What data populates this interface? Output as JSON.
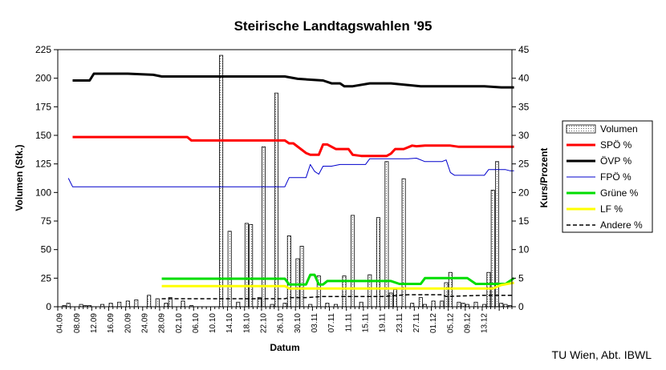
{
  "chart_data": {
    "type": "bar+line",
    "title": "Steirische Landtagswahlen '95",
    "xlabel": "Datum",
    "ylabel_left": "Volumen (Stk.)",
    "ylabel_right": "Kurs/Prozent",
    "ylim_left": [
      0,
      225
    ],
    "ylim_right": [
      0,
      45
    ],
    "yticks_left": [
      "0",
      "25",
      "50",
      "75",
      "100",
      "125",
      "150",
      "175",
      "200",
      "225"
    ],
    "yticks_right": [
      "0",
      "5",
      "10",
      "15",
      "20",
      "25",
      "30",
      "35",
      "40",
      "45"
    ],
    "x_days": 107,
    "xtick_labels": [
      "04.09",
      "08.09",
      "12.09",
      "16.09",
      "20.09",
      "24.09",
      "28.09",
      "02.10",
      "06.10",
      "10.10",
      "14.10",
      "18.10",
      "22.10",
      "26.10",
      "30.10",
      "03.11",
      "07.11",
      "11.11",
      "15.11",
      "19.11",
      "23.11",
      "27.11",
      "01.12",
      "05.12",
      "09.12",
      "13.12"
    ],
    "grid": false,
    "legend_position": "right",
    "volume": {
      "name": "Volumen",
      "day": [
        1,
        2,
        5,
        6,
        7,
        10,
        12,
        14,
        16,
        18,
        21,
        23,
        25,
        26,
        29,
        31,
        38,
        40,
        42,
        44,
        45,
        47,
        48,
        50,
        51,
        53,
        54,
        56,
        57,
        59,
        61,
        63,
        65,
        67,
        69,
        71,
        73,
        75,
        77,
        78,
        79,
        81,
        83,
        85,
        86,
        88,
        90,
        91,
        92,
        94,
        95,
        96,
        98,
        100,
        101,
        102,
        103,
        104,
        105,
        106
      ],
      "values": [
        1,
        3,
        2,
        1,
        1,
        2,
        3,
        4,
        5,
        6,
        10,
        7,
        3,
        8,
        5,
        1,
        220,
        66,
        4,
        73,
        72,
        8,
        140,
        2,
        187,
        3,
        62,
        42,
        53,
        2,
        27,
        3,
        2,
        27,
        80,
        4,
        28,
        78,
        127,
        12,
        15,
        112,
        3,
        8,
        2,
        5,
        5,
        21,
        30,
        4,
        3,
        2,
        4,
        2,
        30,
        102,
        127,
        3,
        2,
        1
      ]
    },
    "series": [
      {
        "name": "SPÖ %",
        "color": "#ff0000",
        "width": 3,
        "dash": "",
        "x": [
          3,
          30,
          31,
          53,
          54,
          55,
          58,
          59,
          61,
          62,
          63,
          65,
          68,
          69,
          71,
          72,
          75,
          77,
          78,
          79,
          81,
          83,
          84,
          86,
          89,
          91,
          92,
          94,
          97,
          100,
          107
        ],
        "y": [
          29.7,
          29.7,
          29.1,
          29.1,
          28.6,
          28.6,
          26.9,
          26.6,
          26.6,
          28.4,
          28.4,
          27.6,
          27.6,
          26.6,
          26.4,
          26.4,
          26.4,
          26.4,
          26.8,
          27.6,
          27.6,
          28.2,
          28.1,
          28.2,
          28.2,
          28.2,
          28.2,
          28.0,
          28.0,
          28.0,
          28.0
        ]
      },
      {
        "name": "ÖVP %",
        "color": "#000000",
        "width": 3,
        "dash": "",
        "x": [
          3,
          7,
          8,
          16,
          22,
          24,
          53,
          56,
          62,
          64,
          66,
          67,
          69,
          73,
          75,
          78,
          85,
          86,
          100,
          104,
          107
        ],
        "y": [
          39.6,
          39.6,
          40.8,
          40.8,
          40.6,
          40.3,
          40.3,
          39.9,
          39.6,
          39.1,
          39.1,
          38.6,
          38.6,
          39.1,
          39.1,
          39.1,
          38.6,
          38.6,
          38.6,
          38.4,
          38.4
        ]
      },
      {
        "name": "FPÖ %",
        "color": "#0000cc",
        "width": 1,
        "dash": "",
        "x": [
          2,
          3,
          53,
          54,
          58,
          59,
          60,
          61,
          62,
          64,
          66,
          67,
          72,
          73,
          76,
          79,
          82,
          84,
          86,
          87,
          90,
          91,
          92,
          93,
          94,
          95,
          96,
          97,
          98,
          99,
          100,
          101,
          102,
          103,
          104,
          105,
          106,
          107
        ],
        "y": [
          22.5,
          21.0,
          21.0,
          22.6,
          22.6,
          24.9,
          23.7,
          23.2,
          24.6,
          24.6,
          24.9,
          24.9,
          24.9,
          25.9,
          25.9,
          25.9,
          25.9,
          26.0,
          25.4,
          25.4,
          25.4,
          25.7,
          23.5,
          23.0,
          23.0,
          23.0,
          23.0,
          23.0,
          23.0,
          23.0,
          23.0,
          24.0,
          24.0,
          24.0,
          24.0,
          24.0,
          23.8,
          23.8
        ]
      },
      {
        "name": "Grüne %",
        "color": "#00dd00",
        "width": 3,
        "dash": "",
        "x": [
          24,
          53,
          54,
          58,
          59,
          60,
          61,
          62,
          63,
          65,
          78,
          80,
          83,
          85,
          86,
          88,
          90,
          91,
          92,
          94,
          96,
          98,
          100,
          103,
          104,
          105,
          107
        ],
        "y": [
          4.9,
          4.9,
          3.9,
          3.9,
          5.6,
          5.6,
          3.9,
          3.9,
          4.5,
          4.5,
          4.5,
          4.0,
          4.0,
          4.0,
          5.0,
          5.0,
          5.0,
          5.0,
          5.0,
          5.0,
          5.0,
          4.0,
          4.0,
          4.0,
          4.0,
          4.0,
          5.0
        ]
      },
      {
        "name": "LF %",
        "color": "#ffff00",
        "width": 3,
        "dash": "",
        "x": [
          24,
          53,
          54,
          80,
          98,
          100,
          102,
          104,
          107
        ],
        "y": [
          3.6,
          3.6,
          3.2,
          3.2,
          3.2,
          3.2,
          3.2,
          3.8,
          4.2
        ]
      },
      {
        "name": "Andere %",
        "color": "#000000",
        "width": 1.5,
        "dash": "5,3",
        "x": [
          24,
          53,
          54,
          58,
          62,
          76,
          82,
          90,
          91,
          100,
          107
        ],
        "y": [
          1.4,
          1.4,
          1.6,
          1.6,
          1.8,
          1.8,
          2.1,
          2.1,
          1.8,
          2.0,
          2.0
        ]
      }
    ]
  },
  "credit": "TU Wien, Abt. IBWL"
}
